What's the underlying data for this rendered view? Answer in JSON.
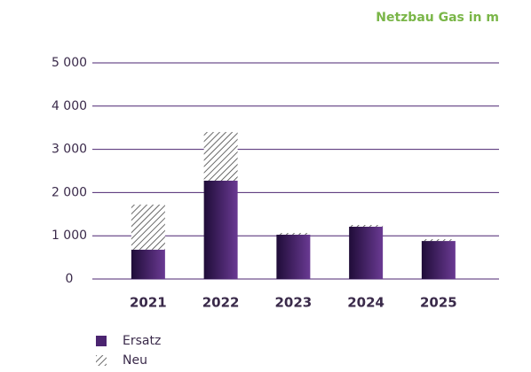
{
  "chart_data": {
    "type": "stacked_bar",
    "title": "Netzbau Gas in m",
    "categories": [
      "2021",
      "2022",
      "2023",
      "2024",
      "2025"
    ],
    "series": [
      {
        "name": "Ersatz",
        "color": "#4b2470",
        "values": [
          680,
          2275,
          1025,
          1210,
          880
        ]
      },
      {
        "name": "Neu",
        "color": "#444444",
        "hatch": true,
        "values": [
          1040,
          1125,
          40,
          40,
          40
        ]
      }
    ],
    "ylim": [
      0,
      5000
    ],
    "yticks": [
      0,
      {
        "value": 1000,
        "label": "1 000"
      },
      {
        "value": 2000,
        "label": "2 000"
      },
      {
        "value": 3000,
        "label": "3 000"
      },
      {
        "value": 4000,
        "label": "4 000"
      },
      {
        "value": 5000,
        "label": "5 000"
      }
    ],
    "grid": true,
    "grid_color": "#4b2470",
    "title_color": "#7ab648"
  }
}
